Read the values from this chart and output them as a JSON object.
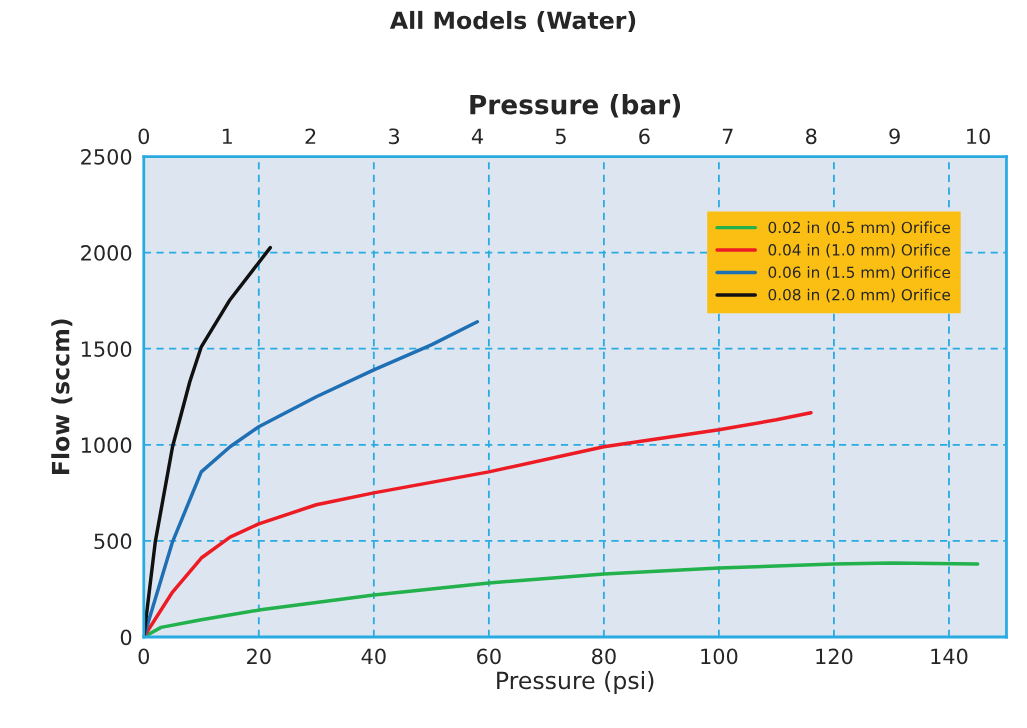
{
  "chart_data": {
    "type": "line",
    "title": "All Models (Water)",
    "xlabel": "Pressure (psi)",
    "ylabel": "Flow (sccm)",
    "x2label": "Pressure (bar)",
    "xlim": [
      0,
      150
    ],
    "xticks": [
      0,
      20,
      40,
      60,
      80,
      100,
      120,
      140
    ],
    "ylim": [
      0,
      2500
    ],
    "yticks": [
      0,
      500,
      1000,
      1500,
      2000,
      2500
    ],
    "x2lim": [
      0,
      10.34
    ],
    "x2ticks": [
      0,
      1,
      2,
      3,
      4,
      5,
      6,
      7,
      8,
      9,
      10
    ],
    "grid": true,
    "legend": "top right",
    "line_style": "solid",
    "marker": "none",
    "series": [
      {
        "name": "0.02 in (0.5 mm) Orifice",
        "color": "#22b14c",
        "x": [
          0,
          3,
          10,
          20,
          40,
          60,
          80,
          100,
          120,
          130,
          145
        ],
        "values": [
          0,
          50,
          90,
          140,
          219,
          281,
          328,
          359,
          380,
          385,
          380
        ]
      },
      {
        "name": "0.04 in (1.0 mm) Orifice",
        "color": "#ed1c24",
        "x": [
          0,
          5,
          10,
          15,
          20,
          30,
          40,
          60,
          80,
          100,
          110,
          116
        ],
        "values": [
          0,
          234,
          411,
          520,
          589,
          688,
          750,
          859,
          990,
          1078,
          1130,
          1167
        ]
      },
      {
        "name": "0.06 in (1.5 mm) Orifice",
        "color": "#1f6fb4",
        "x": [
          0,
          5,
          10,
          15,
          20,
          30,
          40,
          50,
          58
        ],
        "values": [
          0,
          495,
          859,
          990,
          1094,
          1250,
          1390,
          1520,
          1640
        ]
      },
      {
        "name": "0.08 in (2.0 mm) Orifice",
        "color": "#111111",
        "x": [
          0,
          2,
          5,
          8,
          10,
          15,
          22
        ],
        "values": [
          0,
          495,
          990,
          1328,
          1510,
          1755,
          2026
        ]
      }
    ]
  }
}
